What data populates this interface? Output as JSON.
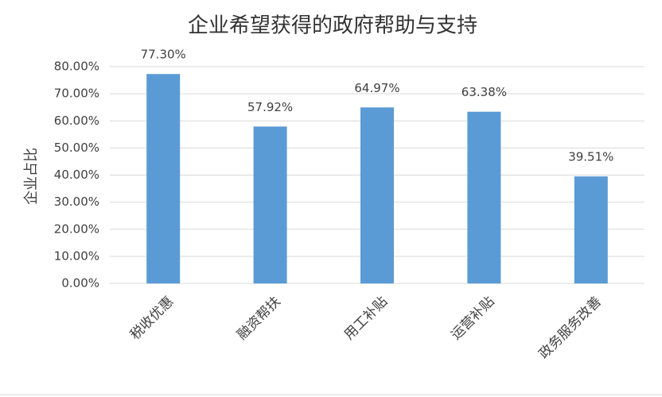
{
  "chart_data": {
    "type": "bar",
    "title": "企业希望获得的政府帮助与支持",
    "y_label": "企业占比",
    "categories": [
      "税收优惠",
      "融资帮扶",
      "用工补贴",
      "运营补贴",
      "政务服务改善"
    ],
    "values": [
      77.3,
      57.92,
      64.97,
      63.38,
      39.51
    ],
    "value_labels": [
      "77.30%",
      "57.92%",
      "64.97%",
      "63.38%",
      "39.51%"
    ],
    "color": "#5b9bd5",
    "ylim": [
      0,
      80
    ],
    "yticks": [
      {
        "value": 0,
        "label": "0.00%"
      },
      {
        "value": 10,
        "label": "10.00%"
      },
      {
        "value": 20,
        "label": "20.00%"
      },
      {
        "value": 30,
        "label": "30.00%"
      },
      {
        "value": 40,
        "label": "40.00%"
      },
      {
        "value": 50,
        "label": "50.00%"
      },
      {
        "value": 60,
        "label": "60.00%"
      },
      {
        "value": 70,
        "label": "70.00%"
      },
      {
        "value": 80,
        "label": "80.00%"
      }
    ],
    "grid": true
  }
}
